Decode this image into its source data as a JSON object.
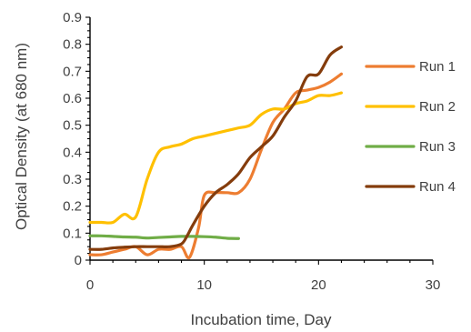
{
  "chart_data": {
    "type": "line",
    "title": "",
    "xlabel": "Incubation time, Day",
    "ylabel": "Optical Density (at 680 nm)",
    "xlim": [
      0,
      30
    ],
    "ylim": [
      0,
      0.9
    ],
    "xticks": [
      0,
      10,
      20,
      30
    ],
    "xtick_labels": [
      "0",
      "10",
      "20",
      "30"
    ],
    "yticks": [
      0,
      0.1,
      0.2,
      0.3,
      0.4,
      0.5,
      0.6,
      0.7,
      0.8,
      0.9
    ],
    "ytick_labels": [
      "0",
      "0.1",
      "0.2",
      "0.3",
      "0.4",
      "0.5",
      "0.6",
      "0.7",
      "0.8",
      "0.9"
    ],
    "grid": false,
    "legend_position": "right",
    "series": [
      {
        "name": "Run 1",
        "color": "#ED7D31",
        "x": [
          0,
          1,
          2,
          3,
          4,
          5,
          6,
          7,
          8,
          8.7,
          9.5,
          10,
          11,
          12,
          13,
          14,
          15,
          16,
          17,
          18,
          19,
          20,
          21,
          22
        ],
        "y": [
          0.02,
          0.02,
          0.03,
          0.04,
          0.05,
          0.02,
          0.04,
          0.04,
          0.05,
          0.01,
          0.12,
          0.24,
          0.25,
          0.25,
          0.25,
          0.3,
          0.41,
          0.51,
          0.56,
          0.62,
          0.63,
          0.64,
          0.66,
          0.69
        ]
      },
      {
        "name": "Run 2",
        "color": "#FFC000",
        "x": [
          0,
          1,
          2,
          3,
          4,
          5,
          6,
          7,
          8,
          9,
          10,
          11,
          12,
          13,
          14,
          15,
          16,
          17,
          18,
          19,
          20,
          21,
          22
        ],
        "y": [
          0.14,
          0.14,
          0.14,
          0.17,
          0.16,
          0.3,
          0.4,
          0.42,
          0.43,
          0.45,
          0.46,
          0.47,
          0.48,
          0.49,
          0.5,
          0.54,
          0.56,
          0.56,
          0.58,
          0.59,
          0.61,
          0.61,
          0.62
        ]
      },
      {
        "name": "Run 3",
        "color": "#70AD47",
        "x": [
          0,
          1,
          2,
          3,
          4,
          5,
          6,
          7,
          8,
          9,
          10,
          11,
          12,
          13
        ],
        "y": [
          0.09,
          0.09,
          0.088,
          0.086,
          0.085,
          0.082,
          0.084,
          0.086,
          0.088,
          0.088,
          0.087,
          0.085,
          0.081,
          0.08
        ]
      },
      {
        "name": "Run 4",
        "color": "#843C0C",
        "x": [
          0,
          1,
          2,
          3,
          4,
          5,
          6,
          7,
          8,
          8.5,
          9,
          10,
          11,
          12,
          13,
          14,
          15,
          16,
          17,
          18,
          19,
          20,
          21,
          22
        ],
        "y": [
          0.04,
          0.04,
          0.045,
          0.048,
          0.05,
          0.05,
          0.05,
          0.05,
          0.06,
          0.09,
          0.13,
          0.2,
          0.25,
          0.28,
          0.32,
          0.38,
          0.42,
          0.46,
          0.53,
          0.59,
          0.68,
          0.69,
          0.76,
          0.79
        ]
      }
    ]
  }
}
